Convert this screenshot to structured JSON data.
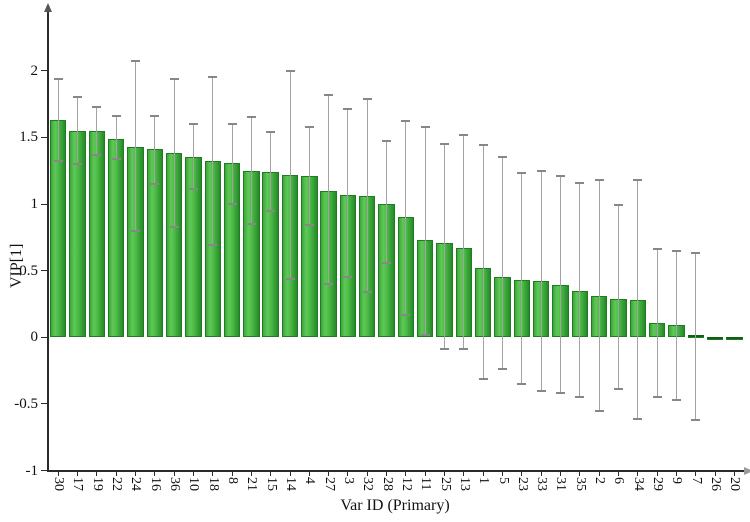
{
  "chart_data": {
    "type": "bar",
    "title": "",
    "xlabel": "Var ID (Primary)",
    "ylabel": "VIP[1]",
    "ylim": [
      -1,
      2.45
    ],
    "yticks": [
      2,
      1.5,
      1,
      0.5,
      0,
      -0.5,
      -1
    ],
    "ytick_labels": [
      "2",
      "1.5",
      "1",
      "0.5",
      "0",
      "-0.5",
      "-1"
    ],
    "grid": false,
    "legend": null,
    "bar_color": "#3da63a",
    "error_color": "#a3a3a3",
    "categories": [
      "30",
      "17",
      "19",
      "22",
      "24",
      "16",
      "36",
      "10",
      "18",
      "8",
      "21",
      "15",
      "14",
      "4",
      "27",
      "3",
      "32",
      "28",
      "12",
      "11",
      "25",
      "13",
      "1",
      "5",
      "23",
      "33",
      "31",
      "35",
      "2",
      "6",
      "34",
      "29",
      "9",
      "7",
      "26",
      "20"
    ],
    "values": [
      1.63,
      1.55,
      1.55,
      1.49,
      1.43,
      1.41,
      1.38,
      1.35,
      1.32,
      1.31,
      1.25,
      1.24,
      1.22,
      1.21,
      1.1,
      1.07,
      1.06,
      1.0,
      0.9,
      0.73,
      0.71,
      0.67,
      0.52,
      0.45,
      0.43,
      0.42,
      0.39,
      0.35,
      0.31,
      0.29,
      0.28,
      0.11,
      0.09,
      0.02,
      -0.015,
      -0.008
    ],
    "error_high": [
      1.94,
      1.8,
      1.73,
      1.66,
      2.07,
      1.66,
      1.94,
      1.6,
      1.95,
      1.6,
      1.65,
      1.54,
      2.0,
      1.58,
      1.82,
      1.71,
      1.79,
      1.47,
      1.62,
      1.58,
      1.45,
      1.52,
      1.44,
      1.35,
      1.23,
      1.25,
      1.21,
      1.16,
      1.18,
      0.99,
      1.18,
      0.66,
      0.65,
      0.63,
      null,
      null
    ],
    "error_low": [
      1.32,
      1.3,
      1.37,
      1.34,
      0.8,
      1.15,
      0.83,
      1.11,
      0.69,
      1.0,
      0.85,
      0.95,
      0.44,
      0.84,
      0.4,
      0.45,
      0.34,
      0.56,
      0.17,
      0.02,
      -0.09,
      -0.09,
      -0.31,
      -0.24,
      -0.35,
      -0.4,
      -0.42,
      -0.45,
      -0.55,
      -0.39,
      -0.61,
      -0.45,
      -0.47,
      -0.62,
      null,
      null
    ]
  },
  "axes": {
    "y_title": "VIP[1]",
    "x_title": "Var ID (Primary)"
  }
}
